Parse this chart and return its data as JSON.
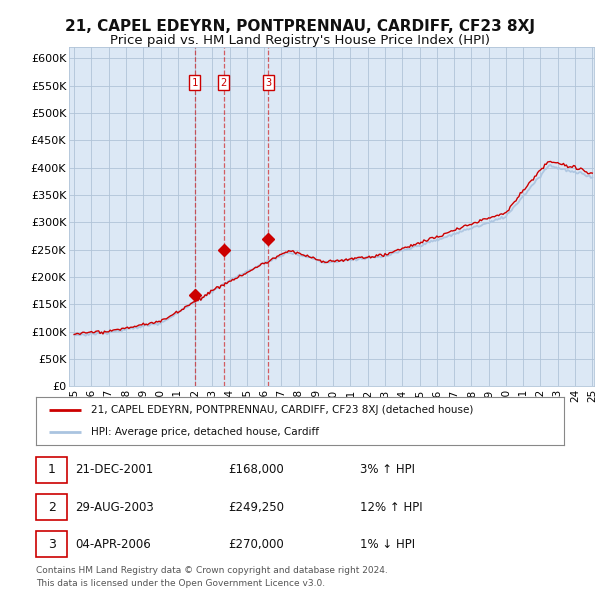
{
  "title": "21, CAPEL EDEYRN, PONTPRENNAU, CARDIFF, CF23 8XJ",
  "subtitle": "Price paid vs. HM Land Registry's House Price Index (HPI)",
  "ylim": [
    0,
    620000
  ],
  "yticks": [
    0,
    50000,
    100000,
    150000,
    200000,
    250000,
    300000,
    350000,
    400000,
    450000,
    500000,
    550000,
    600000
  ],
  "ytick_labels": [
    "£0",
    "£50K",
    "£100K",
    "£150K",
    "£200K",
    "£250K",
    "£300K",
    "£350K",
    "£400K",
    "£450K",
    "£500K",
    "£550K",
    "£600K"
  ],
  "x_start_year": 1995,
  "x_end_year": 2025,
  "sale_points": [
    {
      "year": 2001.97,
      "price": 168000,
      "label": "1"
    },
    {
      "year": 2003.66,
      "price": 249250,
      "label": "2"
    },
    {
      "year": 2006.25,
      "price": 270000,
      "label": "3"
    }
  ],
  "table_rows": [
    {
      "num": "1",
      "date": "21-DEC-2001",
      "price": "£168,000",
      "change": "3% ↑ HPI"
    },
    {
      "num": "2",
      "date": "29-AUG-2003",
      "price": "£249,250",
      "change": "12% ↑ HPI"
    },
    {
      "num": "3",
      "date": "04-APR-2006",
      "price": "£270,000",
      "change": "1% ↓ HPI"
    }
  ],
  "legend_line1": "21, CAPEL EDEYRN, PONTPRENNAU, CARDIFF, CF23 8XJ (detached house)",
  "legend_line2": "HPI: Average price, detached house, Cardiff",
  "footer1": "Contains HM Land Registry data © Crown copyright and database right 2024.",
  "footer2": "This data is licensed under the Open Government Licence v3.0.",
  "hpi_color": "#aac4e0",
  "price_color": "#cc0000",
  "vline_color": "#cc0000",
  "plot_bg_color": "#dce8f5",
  "bg_color": "#ffffff",
  "grid_color": "#b0c4d8",
  "title_fontsize": 11,
  "subtitle_fontsize": 9.5
}
